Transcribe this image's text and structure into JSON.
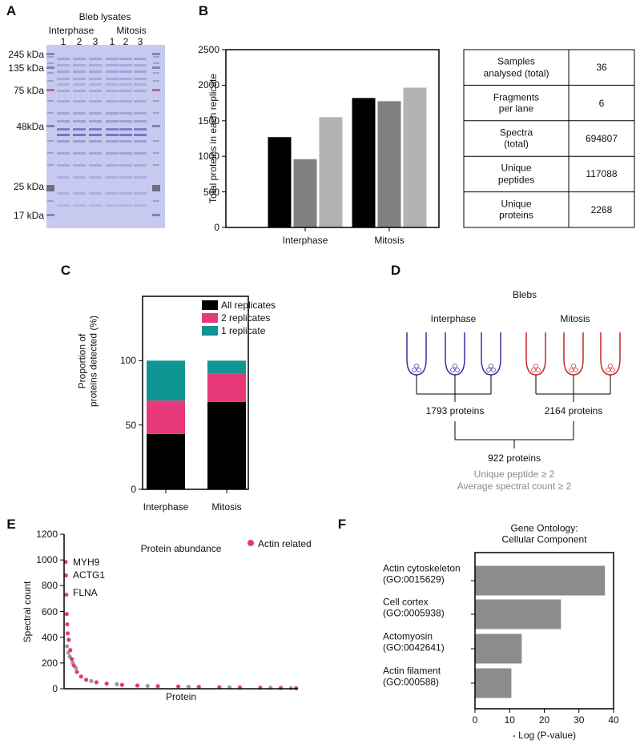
{
  "panel_labels": [
    "A",
    "B",
    "C",
    "D",
    "E",
    "F"
  ],
  "gel": {
    "title": "Bleb lysates",
    "groups": [
      "Interphase",
      "Mitosis"
    ],
    "lanes": [
      "1",
      "2",
      "3",
      "1",
      "2",
      "3"
    ],
    "markers": [
      "245 kDa",
      "135 kDa",
      "75 kDa",
      "48kDa",
      "25 kDa",
      "17 kDa"
    ]
  },
  "table": {
    "rows": [
      [
        "Samples\nanalysed (total)",
        "36"
      ],
      [
        "Fragments\nper lane",
        "6"
      ],
      [
        "Spectra\n(total)",
        "694807"
      ],
      [
        "Unique\npeptides",
        "117088"
      ],
      [
        "Unique\nproteins",
        "2268"
      ]
    ]
  },
  "diagram": {
    "title": "Blebs",
    "groups": [
      "Interphase",
      "Mitosis"
    ],
    "group_counts": [
      "1793 proteins",
      "2164 proteins"
    ],
    "overlap": "922 proteins",
    "notes": [
      "Unique peptide ≥ 2",
      "Average spectral count ≥ 2"
    ]
  },
  "chart_data": [
    {
      "type": "bar",
      "ylabel": "Total proteins in each replicate",
      "categories": [
        "Interphase",
        "Mitosis"
      ],
      "series": [
        {
          "color": "#000000",
          "values": [
            1270,
            1820
          ]
        },
        {
          "color": "#808080",
          "values": [
            960,
            1775
          ]
        },
        {
          "color": "#b3b3b3",
          "values": [
            1550,
            1965
          ]
        }
      ],
      "ylim": [
        0,
        2500
      ],
      "yticks": [
        0,
        500,
        1000,
        1500,
        2000,
        2500
      ]
    },
    {
      "type": "stacked_bar",
      "ylabel": "Proportion of\nproteins detected (%)",
      "categories": [
        "Interphase",
        "Mitosis"
      ],
      "series": [
        {
          "name": "All replicates",
          "color": "#000000",
          "values": [
            43,
            68
          ]
        },
        {
          "name": "2 replicates",
          "color": "#e6397a",
          "values": [
            26,
            22
          ]
        },
        {
          "name": "1 replicate",
          "color": "#0e9594",
          "values": [
            31,
            10
          ]
        }
      ],
      "ylim": [
        0,
        150
      ],
      "yticks": [
        0,
        50,
        100
      ],
      "legend": "upper right"
    },
    {
      "type": "scatter",
      "title": "Protein abundance",
      "xlabel": "Protein",
      "ylabel": "Spectral count",
      "annotations": [
        "MYH9",
        "ACTG1",
        "FLNA"
      ],
      "series": [
        {
          "color": "#9a9a9a",
          "x": [
            12,
            25,
            40,
            70,
            100,
            250,
            500,
            800,
            1200,
            1600,
            2000,
            2200
          ],
          "values": [
            330,
            280,
            250,
            200,
            160,
            60,
            35,
            22,
            15,
            11,
            8,
            5
          ]
        },
        {
          "name": "Actin related",
          "color": "#e6397a",
          "x": [
            0,
            3,
            6,
            10,
            15,
            20,
            30,
            45,
            60,
            80,
            110,
            150,
            200,
            300,
            400,
            550,
            700,
            900,
            1100,
            1300,
            1500,
            1700,
            1900,
            2100,
            2250
          ],
          "values": [
            985,
            880,
            730,
            580,
            500,
            430,
            380,
            300,
            230,
            180,
            130,
            95,
            70,
            50,
            40,
            30,
            25,
            20,
            17,
            14,
            12,
            10,
            8,
            6,
            4
          ]
        }
      ],
      "xlim": [
        0,
        2268
      ],
      "ylim": [
        0,
        1200
      ],
      "yticks": [
        0,
        200,
        400,
        600,
        800,
        1000,
        1200
      ],
      "legend": "upper right"
    },
    {
      "type": "barh",
      "title": "Gene Ontology:\nCellular Component",
      "xlabel": "- Log (P-value)",
      "categories": [
        "Actin cytoskeleton\n(GO:0015629)",
        "Cell cortex\n(GO:0005938)",
        "Actomyosin\n(GO:0042641)",
        "Actin filament\n(GO:000588)"
      ],
      "values": [
        37.5,
        24.8,
        13.5,
        10.5
      ],
      "color": "#8c8c8c",
      "xlim": [
        0,
        40
      ],
      "xticks": [
        0,
        10,
        20,
        30,
        40
      ]
    }
  ]
}
